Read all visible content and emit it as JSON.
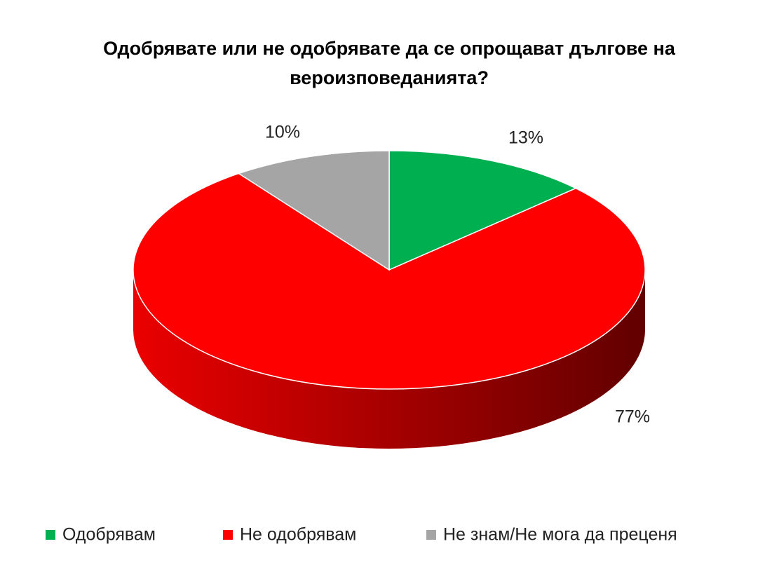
{
  "chart_data": {
    "type": "pie",
    "title": "Одобрявате или не одобрявате да се опрощават дългове на вероизповеданията?",
    "categories": [
      "Одобрявам",
      "Не одобрявам",
      "Не знам/Не мога да преценя"
    ],
    "values": [
      13,
      77,
      10
    ],
    "value_labels": [
      "13%",
      "77%",
      "10%"
    ],
    "colors": [
      "#00b050",
      "#ff0000",
      "#a5a5a5"
    ],
    "legend": "bottom"
  }
}
